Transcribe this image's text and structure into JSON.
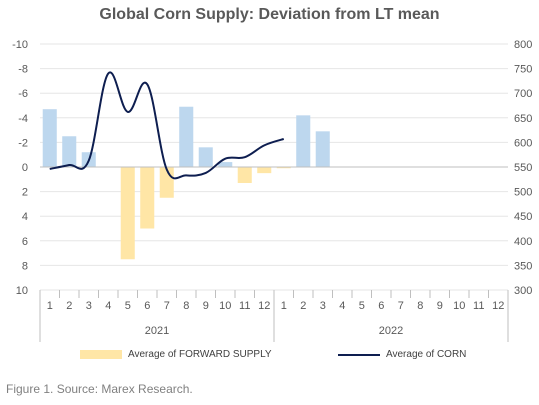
{
  "chart_data": {
    "type": "bar",
    "title": "Global Corn Supply: Deviation from LT mean",
    "caption": "Figure 1. Source: Marex Research.",
    "x": {
      "groups": [
        {
          "label": "2021",
          "months": [
            "1",
            "2",
            "3",
            "4",
            "5",
            "6",
            "7",
            "8",
            "9",
            "10",
            "11",
            "12"
          ]
        },
        {
          "label": "2022",
          "months": [
            "1",
            "2",
            "3",
            "4",
            "5",
            "6",
            "7",
            "8",
            "9",
            "10",
            "11",
            "12"
          ]
        }
      ]
    },
    "y_left": {
      "min": -10,
      "max": 10,
      "inverted": true,
      "ticks": [
        "-10",
        "-8",
        "-6",
        "-4",
        "-2",
        "0",
        "2",
        "4",
        "6",
        "8",
        "10"
      ]
    },
    "y_right": {
      "min": 300,
      "max": 800,
      "ticks": [
        "800",
        "750",
        "700",
        "650",
        "600",
        "550",
        "500",
        "450",
        "400",
        "350",
        "300"
      ]
    },
    "series": [
      {
        "name": "Average of FORWARD SUPPLY",
        "kind": "bar",
        "axis": "left",
        "color_positive": "#FFE6A6",
        "color_negative": "#BDD7EE",
        "values": [
          -4.7,
          -2.5,
          -1.2,
          0,
          7.5,
          5.0,
          2.5,
          -4.9,
          -1.6,
          -0.4,
          1.3,
          0.5,
          0.1,
          -4.2,
          -2.9,
          0,
          0,
          0,
          0,
          0,
          0,
          0,
          0,
          0
        ]
      },
      {
        "name": "Average of CORN",
        "kind": "line",
        "axis": "right",
        "color": "#0E1E50",
        "points": [
          {
            "i": 0,
            "v": 546
          },
          {
            "i": 1,
            "v": 554
          },
          {
            "i": 2,
            "v": 563
          },
          {
            "i": 3,
            "v": 740
          },
          {
            "i": 4,
            "v": 662
          },
          {
            "i": 5,
            "v": 718
          },
          {
            "i": 6,
            "v": 545
          },
          {
            "i": 7,
            "v": 533
          },
          {
            "i": 8,
            "v": 538
          },
          {
            "i": 9,
            "v": 567
          },
          {
            "i": 10,
            "v": 570
          },
          {
            "i": 11,
            "v": 594
          },
          {
            "i": 12,
            "v": 607
          }
        ]
      }
    ],
    "legend_position": "bottom",
    "grid": true
  }
}
